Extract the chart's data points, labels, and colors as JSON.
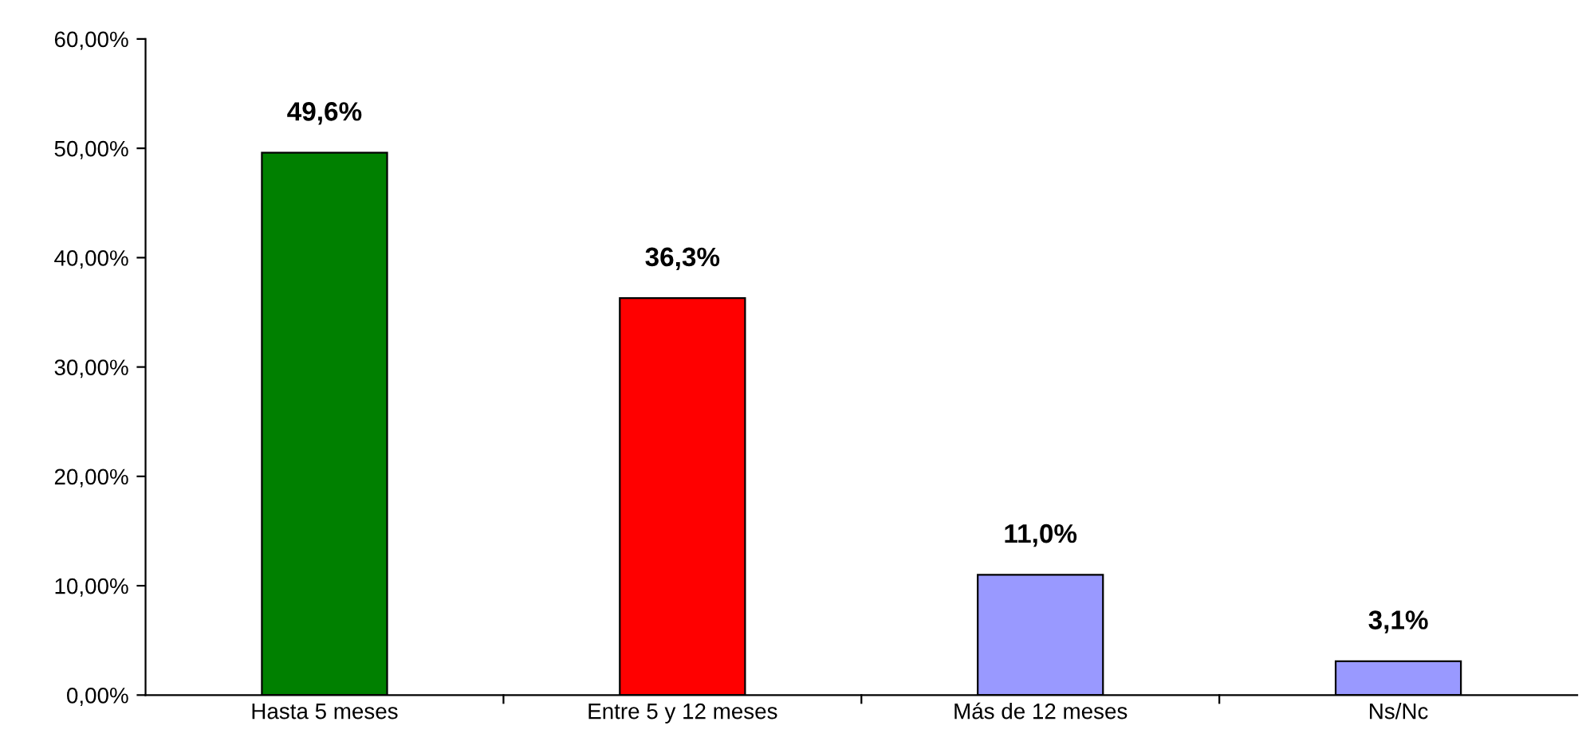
{
  "chart_data": {
    "type": "bar",
    "categories": [
      "Hasta 5 meses",
      "Entre 5 y 12 meses",
      "Más de 12 meses",
      "Ns/Nc"
    ],
    "values": [
      49.6,
      36.3,
      11.0,
      3.1
    ],
    "colors": [
      "#008000",
      "#ff0000",
      "#9999ff",
      "#9999ff"
    ],
    "value_labels": [
      "49,6%",
      "36,3%",
      "11,0%",
      "3,1%"
    ],
    "ylim": [
      0,
      60
    ],
    "yticks": [
      {
        "value": 0,
        "label": "0,00%"
      },
      {
        "value": 10,
        "label": "10,00%"
      },
      {
        "value": 20,
        "label": "20,00%"
      },
      {
        "value": 30,
        "label": "30,00%"
      },
      {
        "value": 40,
        "label": "40,00%"
      },
      {
        "value": 50,
        "label": "50,00%"
      },
      {
        "value": 60,
        "label": "60,00%"
      }
    ],
    "grid": false,
    "legend": false
  }
}
